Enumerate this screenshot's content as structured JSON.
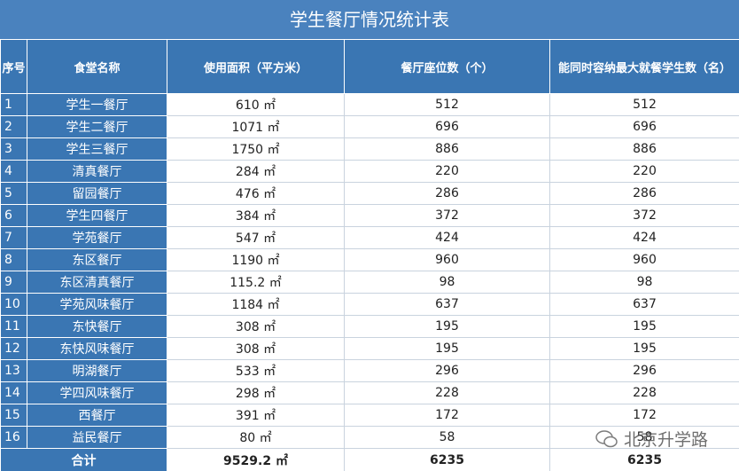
{
  "title": "学生餐厅情况统计表",
  "table": {
    "header": [
      "序号",
      "食堂名称",
      "使用面积（平方米）",
      "餐厅座位数（个）",
      "能同时容纳最大就餐学生数（名）"
    ],
    "rows": [
      [
        "1",
        "学生一餐厅",
        "610 ㎡",
        "512",
        "512"
      ],
      [
        "2",
        "学生二餐厅",
        "1071 ㎡",
        "696",
        "696"
      ],
      [
        "3",
        "学生三餐厅",
        "1750 ㎡",
        "886",
        "886"
      ],
      [
        "4",
        "清真餐厅",
        "284 ㎡",
        "220",
        "220"
      ],
      [
        "5",
        "留园餐厅",
        "476 ㎡",
        "286",
        "286"
      ],
      [
        "6",
        "学生四餐厅",
        "384 ㎡",
        "372",
        "372"
      ],
      [
        "7",
        "学苑餐厅",
        "547 ㎡",
        "424",
        "424"
      ],
      [
        "8",
        "东区餐厅",
        "1190 ㎡",
        "960",
        "960"
      ],
      [
        "9",
        "东区清真餐厅",
        "115.2 ㎡",
        "98",
        "98"
      ],
      [
        "10",
        "学苑风味餐厅",
        "1184 ㎡",
        "637",
        "637"
      ],
      [
        "11",
        "东快餐厅",
        "308 ㎡",
        "195",
        "195"
      ],
      [
        "12",
        "东快风味餐厅",
        "308 ㎡",
        "195",
        "195"
      ],
      [
        "13",
        "明湖餐厅",
        "533 ㎡",
        "296",
        "296"
      ],
      [
        "14",
        "学四风味餐厅",
        "298 ㎡",
        "228",
        "228"
      ],
      [
        "15",
        "西餐厅",
        "391 ㎡",
        "172",
        "172"
      ],
      [
        "16",
        "益民餐厅",
        "80 ㎡",
        "58",
        "58"
      ]
    ],
    "total": [
      "合计",
      "9529.2 ㎡",
      "6235",
      "6235"
    ]
  },
  "watermark": "北京升学路"
}
